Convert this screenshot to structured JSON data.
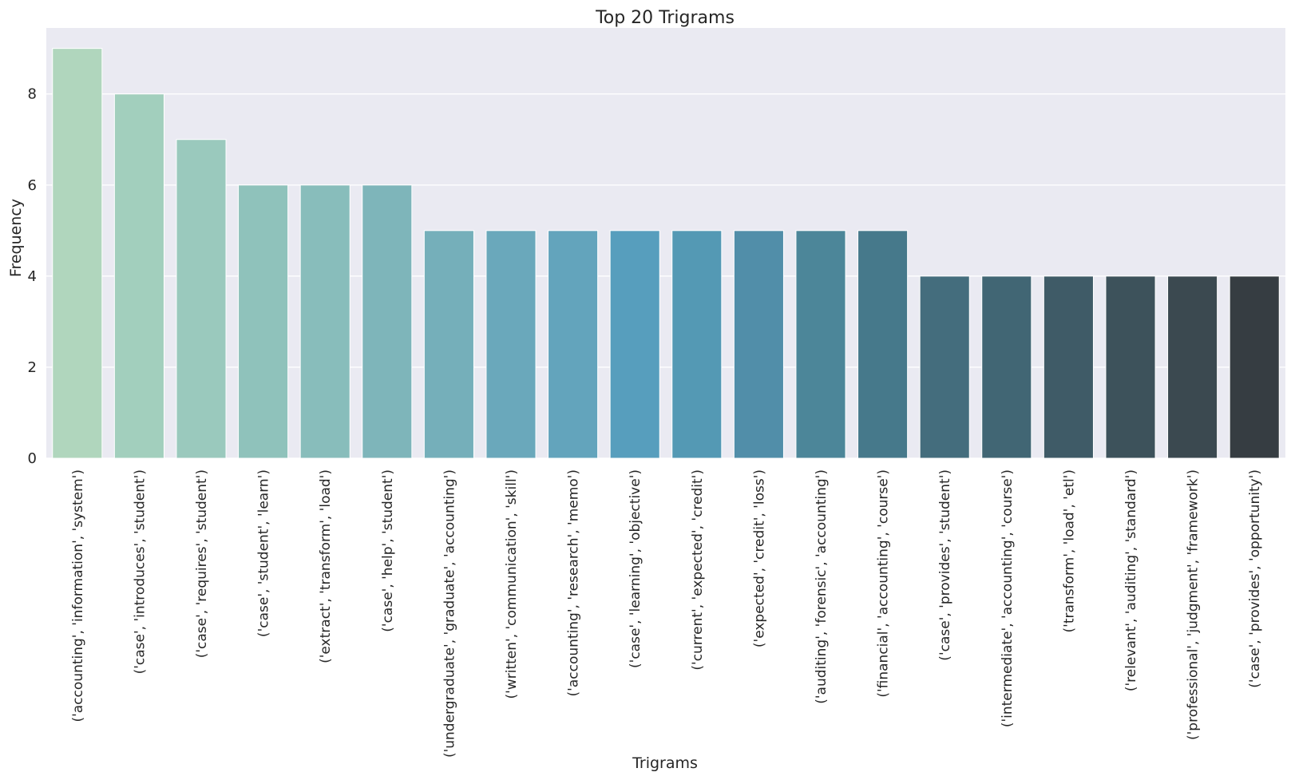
{
  "chart_data": {
    "type": "bar",
    "title": "Top 20 Trigrams",
    "xlabel": "Trigrams",
    "ylabel": "Frequency",
    "ylim": [
      0,
      9.45
    ],
    "yticks": [
      0,
      2,
      4,
      6,
      8
    ],
    "grid": true,
    "categories": [
      "('accounting', 'information', 'system')",
      "('case', 'introduces', 'student')",
      "('case', 'requires', 'student')",
      "('case', 'student', 'learn')",
      "('extract', 'transform', 'load')",
      "('case', 'help', 'student')",
      "('undergraduate', 'graduate', 'accounting')",
      "('written', 'communication', 'skill')",
      "('accounting', 'research', 'memo')",
      "('case', 'learning', 'objective')",
      "('current', 'expected', 'credit')",
      "('expected', 'credit', 'loss')",
      "('auditing', 'forensic', 'accounting')",
      "('financial', 'accounting', 'course')",
      "('case', 'provides', 'student')",
      "('intermediate', 'accounting', 'course')",
      "('transform', 'load', 'etl')",
      "('relevant', 'auditing', 'standard')",
      "('professional', 'judgment', 'framework')",
      "('case', 'provides', 'opportunity')"
    ],
    "values": [
      9,
      8,
      7,
      6,
      6,
      6,
      5,
      5,
      5,
      5,
      5,
      5,
      5,
      5,
      4,
      4,
      4,
      4,
      4,
      4
    ],
    "colors": [
      "#b0d6bd",
      "#a2cfbd",
      "#9ac9bd",
      "#8fc2bb",
      "#88bdbb",
      "#7eb5ba",
      "#75afba",
      "#6aa8bb",
      "#63a4bc",
      "#579ebd",
      "#5499b4",
      "#518ea9",
      "#4c8699",
      "#46798b",
      "#446d7d",
      "#416674",
      "#3f5b67",
      "#3d525b",
      "#3b4950",
      "#363d42"
    ],
    "plot_background": "#eaeaf2",
    "grid_color": "#ffffff"
  }
}
